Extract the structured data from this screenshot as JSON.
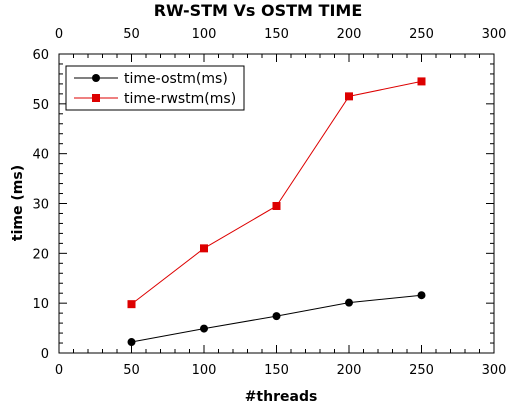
{
  "chart_data": {
    "type": "line",
    "title": "RW-STM Vs OSTM TIME",
    "xlabel": "#threads",
    "ylabel": "time (ms)",
    "xlim": [
      0,
      300
    ],
    "ylim": [
      0,
      60
    ],
    "x_ticks": [
      0,
      50,
      100,
      150,
      200,
      250,
      300
    ],
    "y_ticks": [
      0,
      10,
      20,
      30,
      40,
      50,
      60
    ],
    "x_minor_step": 10,
    "y_minor_step": 2,
    "grid": false,
    "mirror_top_axis": true,
    "legend_position": "top-left",
    "x": [
      50,
      100,
      150,
      200,
      250
    ],
    "series": [
      {
        "name": "time-ostm(ms)",
        "values": [
          2.2,
          4.9,
          7.4,
          10.1,
          11.6
        ],
        "color": "#000000",
        "marker": "circle"
      },
      {
        "name": "time-rwstm(ms)",
        "values": [
          9.8,
          21.0,
          29.5,
          51.5,
          54.5
        ],
        "color": "#dd0000",
        "marker": "square"
      }
    ]
  }
}
